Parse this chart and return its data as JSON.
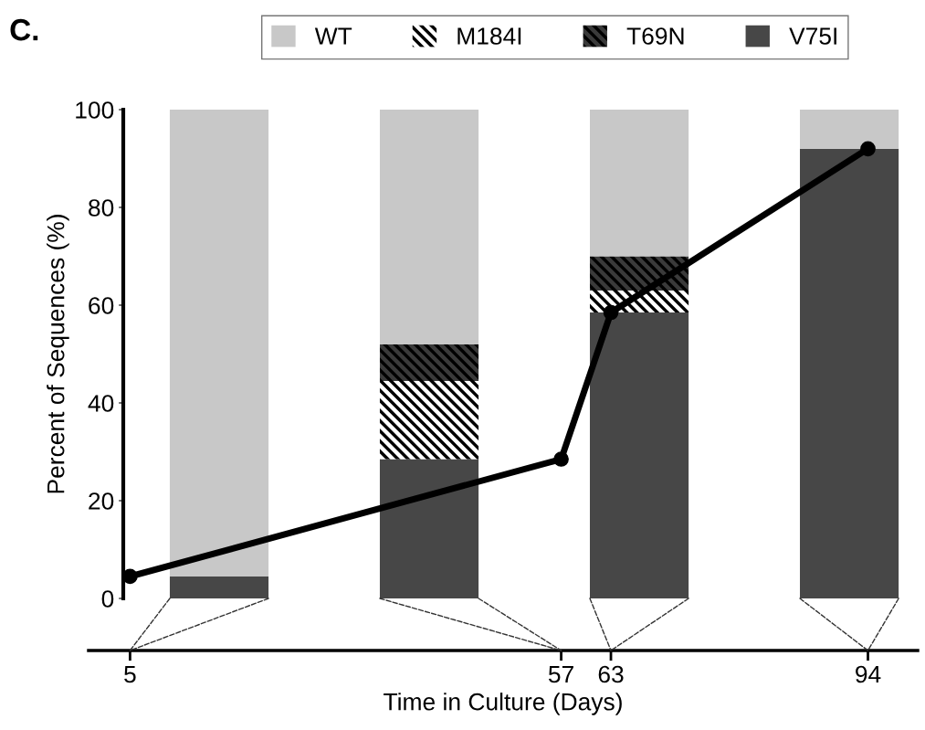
{
  "chart_data": [
    {
      "type": "bar",
      "stacked": true,
      "categories": [
        null,
        null,
        null,
        null
      ],
      "series": [
        {
          "name": "V75I",
          "color": "#474747",
          "values": [
            4.5,
            28.5,
            58.5,
            92
          ]
        },
        {
          "name": "M184I",
          "color": "#ffffff",
          "values": [
            0,
            16,
            4.5,
            0
          ]
        },
        {
          "name": "T69N",
          "color": "#3a3a3a",
          "values": [
            0,
            7.5,
            7,
            0
          ]
        },
        {
          "name": "WT",
          "color": "#c8c8c8",
          "values": [
            95.5,
            48,
            30,
            8
          ]
        }
      ],
      "ylim": [
        0,
        100
      ],
      "yticks": [
        0,
        20,
        40,
        60,
        80,
        100
      ],
      "ylabel": "Percent of Sequences (%)",
      "annotations": [
        "C."
      ],
      "legend": "top",
      "grid": false
    },
    {
      "type": "line",
      "x": [
        5,
        57,
        63,
        94
      ],
      "values": [
        4.5,
        28.5,
        58.5,
        92
      ],
      "color": "#000000",
      "marker": "circle",
      "xlim": [
        0,
        100
      ],
      "xticks": [
        5,
        57,
        63,
        94
      ],
      "ylim": [
        0,
        100
      ],
      "tick_labels": "x",
      "xlabel": "Time in Culture (Days)",
      "grid": false
    }
  ]
}
